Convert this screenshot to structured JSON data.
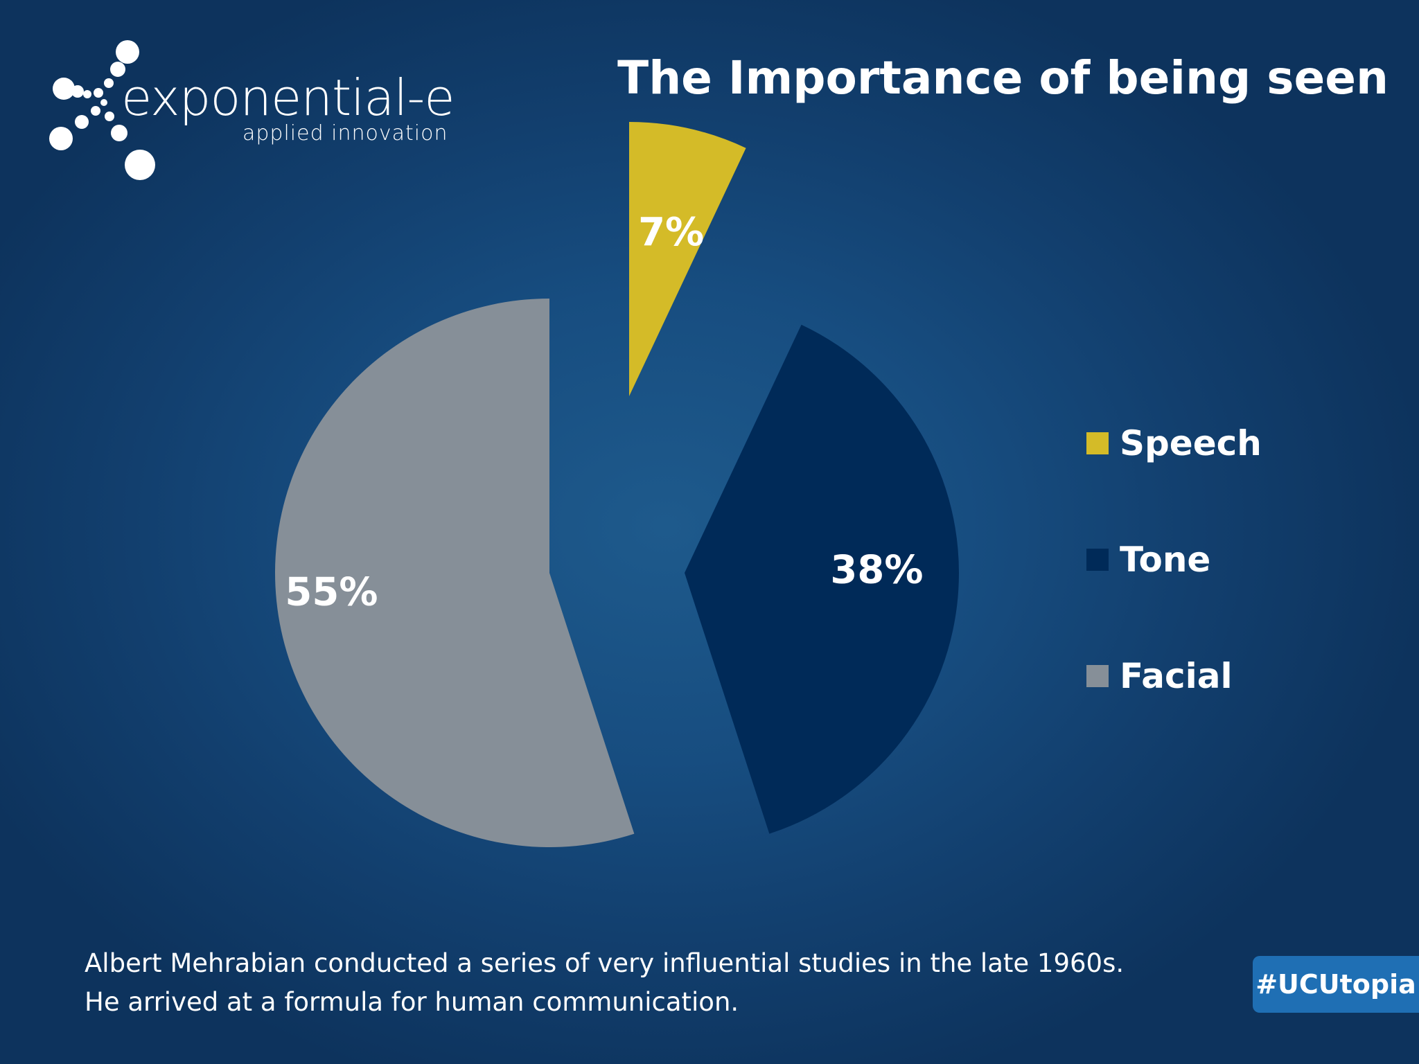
{
  "logo": {
    "wordmark": "exponential-e",
    "tagline": "applied innovation"
  },
  "title": "The Importance of being seen",
  "chart_data": {
    "type": "pie",
    "title": "The Importance of being seen",
    "exploded": true,
    "start_angle_deg": 0,
    "direction": "clockwise",
    "data_label_format": "percent",
    "legend_placement": "right",
    "slices": [
      {
        "label": "Speech",
        "value": 7,
        "display": "7%",
        "color": "#d4bb28"
      },
      {
        "label": "Tone",
        "value": 38,
        "display": "38%",
        "color": "#002a58"
      },
      {
        "label": "Facial",
        "value": 55,
        "display": "55%",
        "color": "#868f98"
      }
    ]
  },
  "caption": {
    "line1": "Albert Mehrabian conducted a series of very influential studies in the late 1960s.",
    "line2": "He arrived at a formula for human communication."
  },
  "hashtag": "#UCUtopia"
}
